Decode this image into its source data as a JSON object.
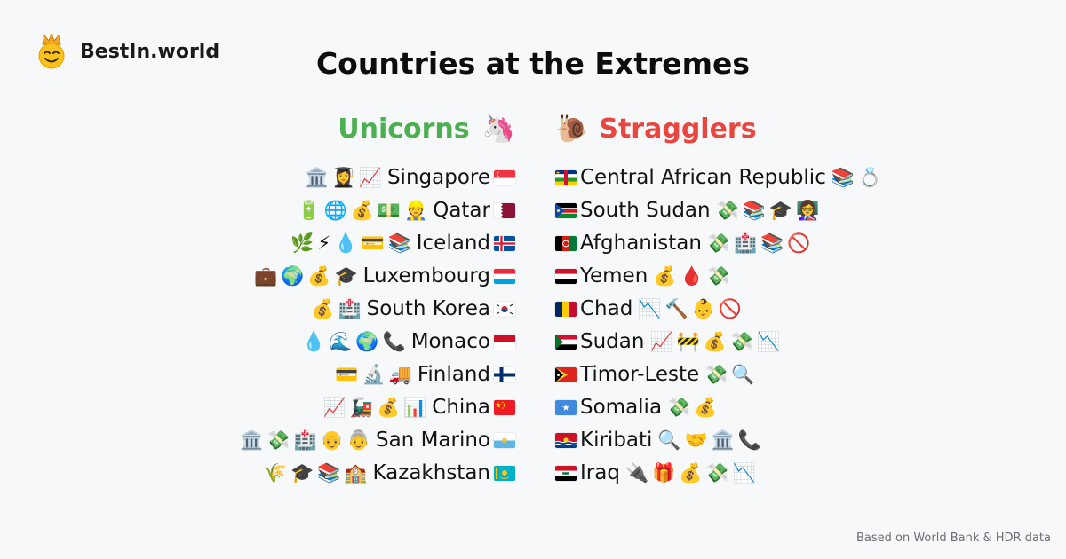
{
  "brand": {
    "name": "BestIn.world"
  },
  "title": "Countries at the Extremes",
  "unicorns": {
    "heading": "Unicorns",
    "heading_emoji": "🦄",
    "rows": [
      {
        "icons": [
          "🏛️",
          "👩‍🎓",
          "📈"
        ],
        "name": "Singapore",
        "flag": "sg"
      },
      {
        "icons": [
          "🔋",
          "🌐",
          "💰",
          "💵",
          "👷"
        ],
        "name": "Qatar",
        "flag": "qa"
      },
      {
        "icons": [
          "🌿",
          "⚡",
          "💧",
          "💳",
          "📚"
        ],
        "name": "Iceland",
        "flag": "is"
      },
      {
        "icons": [
          "💼",
          "🌍",
          "💰",
          "🎓"
        ],
        "name": "Luxembourg",
        "flag": "lu"
      },
      {
        "icons": [
          "💰",
          "🏥"
        ],
        "name": "South Korea",
        "flag": "kr"
      },
      {
        "icons": [
          "💧",
          "🌊",
          "🌍",
          "📞"
        ],
        "name": "Monaco",
        "flag": "mc"
      },
      {
        "icons": [
          "💳",
          "🔬",
          "🚚"
        ],
        "name": "Finland",
        "flag": "fi"
      },
      {
        "icons": [
          "📈",
          "🚂",
          "💰",
          "📊"
        ],
        "name": "China",
        "flag": "cn"
      },
      {
        "icons": [
          "🏛️",
          "💸",
          "🏥",
          "👴",
          "👵"
        ],
        "name": "San Marino",
        "flag": "sm"
      },
      {
        "icons": [
          "🌾",
          "🎓",
          "📚",
          "🏫"
        ],
        "name": "Kazakhstan",
        "flag": "kz"
      }
    ]
  },
  "stragglers": {
    "heading": "Stragglers",
    "heading_emoji": "🐌",
    "rows": [
      {
        "flag": "cf",
        "name": "Central African Republic",
        "icons": [
          "📚",
          "💍"
        ]
      },
      {
        "flag": "ss",
        "name": "South Sudan",
        "icons": [
          "💸",
          "📚",
          "🎓",
          "👩‍🏫"
        ]
      },
      {
        "flag": "af",
        "name": "Afghanistan",
        "icons": [
          "💸",
          "🏥",
          "📚",
          "🚫"
        ]
      },
      {
        "flag": "ye",
        "name": "Yemen",
        "icons": [
          "💰",
          "🩸",
          "💸"
        ]
      },
      {
        "flag": "td",
        "name": "Chad",
        "icons": [
          "📉",
          "🔨",
          "👶",
          "🚫"
        ]
      },
      {
        "flag": "sd",
        "name": "Sudan",
        "icons": [
          "📈",
          "🚧",
          "💰",
          "💸",
          "📉"
        ]
      },
      {
        "flag": "tl",
        "name": "Timor-Leste",
        "icons": [
          "💸",
          "🔍"
        ]
      },
      {
        "flag": "so",
        "name": "Somalia",
        "icons": [
          "💸",
          "💰"
        ]
      },
      {
        "flag": "ki",
        "name": "Kiribati",
        "icons": [
          "🔍",
          "🤝",
          "🏛️",
          "📞"
        ]
      },
      {
        "flag": "iq",
        "name": "Iraq",
        "icons": [
          "🔌",
          "🎁",
          "💰",
          "💸",
          "📉"
        ]
      }
    ]
  },
  "footer": "Based on World Bank & HDR data",
  "colors": {
    "unicorns": "#4caf50",
    "stragglers": "#e8463f",
    "background": "#f7f8fa"
  }
}
